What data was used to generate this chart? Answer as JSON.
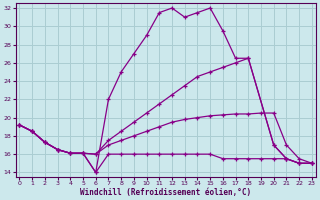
{
  "xlabel": "Windchill (Refroidissement éolien,°C)",
  "background_color": "#cce8ec",
  "grid_color": "#aacdd2",
  "line_color": "#880088",
  "ylim": [
    13.5,
    32.5
  ],
  "xlim": [
    -0.3,
    23.3
  ],
  "yticks": [
    14,
    16,
    18,
    20,
    22,
    24,
    26,
    28,
    30,
    32
  ],
  "xticks": [
    0,
    1,
    2,
    3,
    4,
    5,
    6,
    7,
    8,
    9,
    10,
    11,
    12,
    13,
    14,
    15,
    16,
    17,
    18,
    19,
    20,
    21,
    22,
    23
  ],
  "series": [
    {
      "x": [
        0,
        1,
        2,
        3,
        4,
        5,
        6,
        7,
        8,
        9,
        10,
        11,
        12,
        13,
        14,
        15,
        16,
        17,
        18,
        20,
        21,
        22,
        23
      ],
      "y": [
        19.2,
        18.5,
        17.3,
        16.5,
        16.1,
        16.1,
        14.0,
        22.0,
        25.0,
        27.0,
        29.0,
        31.5,
        32.0,
        31.0,
        31.5,
        32.0,
        29.5,
        26.5,
        26.5,
        17.0,
        15.5,
        15.0,
        15.0
      ]
    },
    {
      "x": [
        0,
        1,
        2,
        3,
        4,
        5,
        6,
        7,
        8,
        9,
        10,
        11,
        12,
        13,
        14,
        15,
        16,
        17,
        18,
        20,
        21,
        22,
        23
      ],
      "y": [
        19.2,
        18.5,
        17.3,
        16.5,
        16.1,
        16.1,
        16.0,
        17.5,
        18.5,
        19.5,
        20.5,
        21.5,
        22.5,
        23.5,
        24.5,
        25.0,
        25.5,
        26.0,
        26.5,
        17.0,
        15.5,
        15.0,
        15.0
      ]
    },
    {
      "x": [
        0,
        1,
        2,
        3,
        4,
        5,
        6,
        7,
        8,
        9,
        10,
        11,
        12,
        13,
        14,
        15,
        16,
        17,
        18,
        19,
        20,
        21,
        22,
        23
      ],
      "y": [
        19.2,
        18.5,
        17.3,
        16.5,
        16.1,
        16.1,
        16.0,
        17.0,
        17.5,
        18.0,
        18.5,
        19.0,
        19.5,
        19.8,
        20.0,
        20.2,
        20.3,
        20.4,
        20.4,
        20.5,
        20.5,
        17.0,
        15.5,
        15.0
      ]
    },
    {
      "x": [
        0,
        1,
        2,
        3,
        4,
        5,
        6,
        7,
        8,
        9,
        10,
        11,
        12,
        13,
        14,
        15,
        16,
        17,
        18,
        19,
        20,
        21,
        22,
        23
      ],
      "y": [
        19.2,
        18.5,
        17.3,
        16.5,
        16.1,
        16.1,
        14.0,
        16.0,
        16.0,
        16.0,
        16.0,
        16.0,
        16.0,
        16.0,
        16.0,
        16.0,
        15.5,
        15.5,
        15.5,
        15.5,
        15.5,
        15.5,
        15.0,
        15.0
      ]
    }
  ]
}
